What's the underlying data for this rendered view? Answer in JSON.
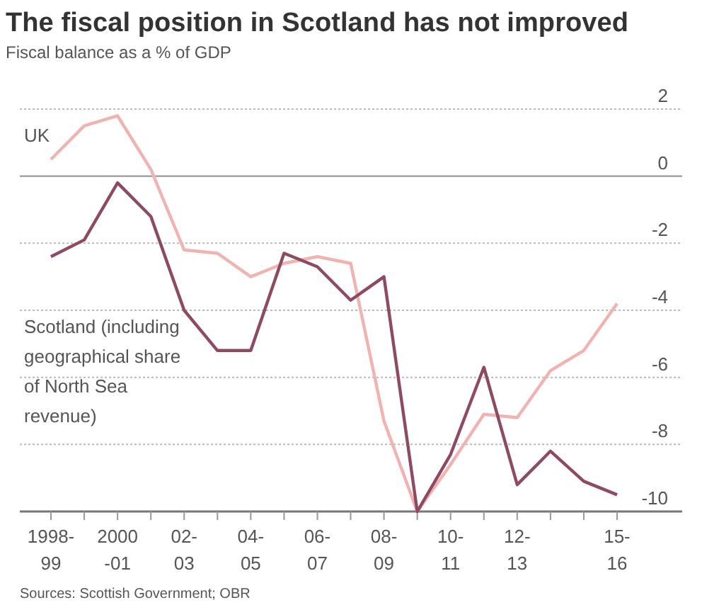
{
  "chart_data": {
    "type": "line",
    "title": "The fiscal position in Scotland has not improved",
    "subtitle": "Fiscal balance as a % of GDP",
    "categories": [
      "1998-\n99",
      null,
      "2000\n-01",
      null,
      "02-\n03",
      null,
      "04-\n05",
      null,
      "06-\n07",
      null,
      "08-\n09",
      null,
      "10-\n11",
      null,
      "12-\n13",
      null,
      null,
      "15-\n16"
    ],
    "series": [
      {
        "name": "UK",
        "color": "#f0b3b1",
        "values": [
          0.5,
          1.5,
          1.8,
          0.2,
          -2.2,
          -2.3,
          -3.0,
          -2.6,
          -2.4,
          -2.6,
          -7.3,
          -10.0,
          -8.6,
          -7.1,
          -7.2,
          -5.8,
          -5.2,
          -3.8
        ]
      },
      {
        "name": "Scotland (including geographical share of North Sea revenue)",
        "color": "#8e4a62",
        "values": [
          -2.4,
          -1.9,
          -0.2,
          -1.2,
          -4.0,
          -5.2,
          -5.2,
          -2.3,
          -2.7,
          -3.7,
          -3.0,
          -10.0,
          -8.3,
          -5.7,
          -9.2,
          -8.2,
          -9.1,
          -9.5
        ]
      }
    ],
    "ylim": [
      -10,
      2
    ],
    "yticks": [
      -10,
      -8,
      -6,
      -4,
      -2,
      0,
      2
    ],
    "grid": "y",
    "annotations": [
      "Sources: Scottish Government; OBR"
    ]
  }
}
